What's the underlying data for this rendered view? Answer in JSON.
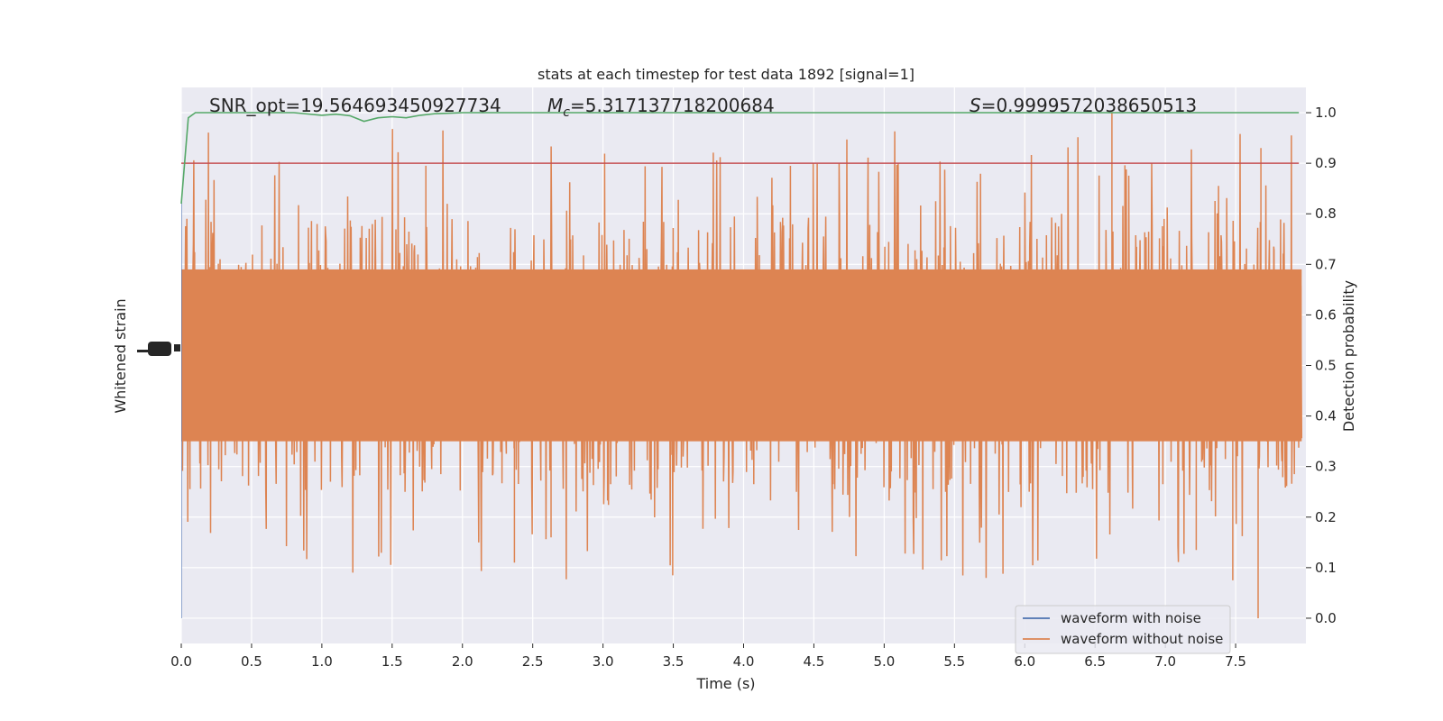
{
  "chart_data": {
    "type": "line",
    "title": "stats at each timestep for test data 1892 [signal=1]",
    "xlabel": "Time (s)",
    "ylabel_left": "Whitened strain",
    "ylabel_right": "Detection probability",
    "xlim": [
      0.0,
      8.0
    ],
    "ylim_right": [
      -0.05,
      1.05
    ],
    "x_ticks": [
      "0.0",
      "0.5",
      "1.0",
      "1.5",
      "2.0",
      "2.5",
      "3.0",
      "3.5",
      "4.0",
      "4.5",
      "5.0",
      "5.5",
      "6.0",
      "6.5",
      "7.0",
      "7.5"
    ],
    "x_tick_values": [
      0.0,
      0.5,
      1.0,
      1.5,
      2.0,
      2.5,
      3.0,
      3.5,
      4.0,
      4.5,
      5.0,
      5.5,
      6.0,
      6.5,
      7.0,
      7.5
    ],
    "right_ticks": [
      "0.0",
      "0.1",
      "0.2",
      "0.3",
      "0.4",
      "0.5",
      "0.6",
      "0.7",
      "0.8",
      "0.9",
      "1.0"
    ],
    "right_tick_values": [
      0.0,
      0.1,
      0.2,
      0.3,
      0.4,
      0.5,
      0.6,
      0.7,
      0.8,
      0.9,
      1.0
    ],
    "grid": true,
    "legend_placement": "lower-right",
    "annotations": {
      "snr": "SNR_opt=19.564693450927734",
      "mc_symbol": "M",
      "mc_sub": "c",
      "mc_value": "=5.317137718200684",
      "s_symbol": "S",
      "s_value": "=0.9999572038650513"
    },
    "series": [
      {
        "name": "waveform with noise",
        "color": "#4c72b0",
        "description_values": "dense whitened strain trace, visually hidden beneath orange series"
      },
      {
        "name": "waveform without noise",
        "color": "#dd8452",
        "approx_envelope_probability_units": {
          "center": 0.52,
          "typical_range": [
            0.3,
            0.75
          ],
          "peaks_max": 1.0,
          "troughs_min": 0.0
        }
      },
      {
        "name": "detection probability",
        "color": "#55a868",
        "x": [
          0.0,
          0.05,
          0.1,
          0.2,
          0.4,
          0.6,
          0.8,
          1.0,
          1.1,
          1.2,
          1.3,
          1.4,
          1.5,
          1.6,
          1.7,
          1.8,
          2.0,
          3.0,
          4.0,
          5.0,
          6.0,
          7.0,
          7.95
        ],
        "y": [
          0.82,
          0.99,
          1.0,
          1.0,
          1.0,
          1.0,
          1.0,
          0.995,
          0.997,
          0.994,
          0.983,
          0.99,
          0.992,
          0.99,
          0.995,
          0.998,
          1.0,
          1.0,
          1.0,
          1.0,
          1.0,
          1.0,
          1.0
        ]
      },
      {
        "name": "threshold",
        "color": "#c44e52",
        "y": 0.9
      }
    ]
  }
}
